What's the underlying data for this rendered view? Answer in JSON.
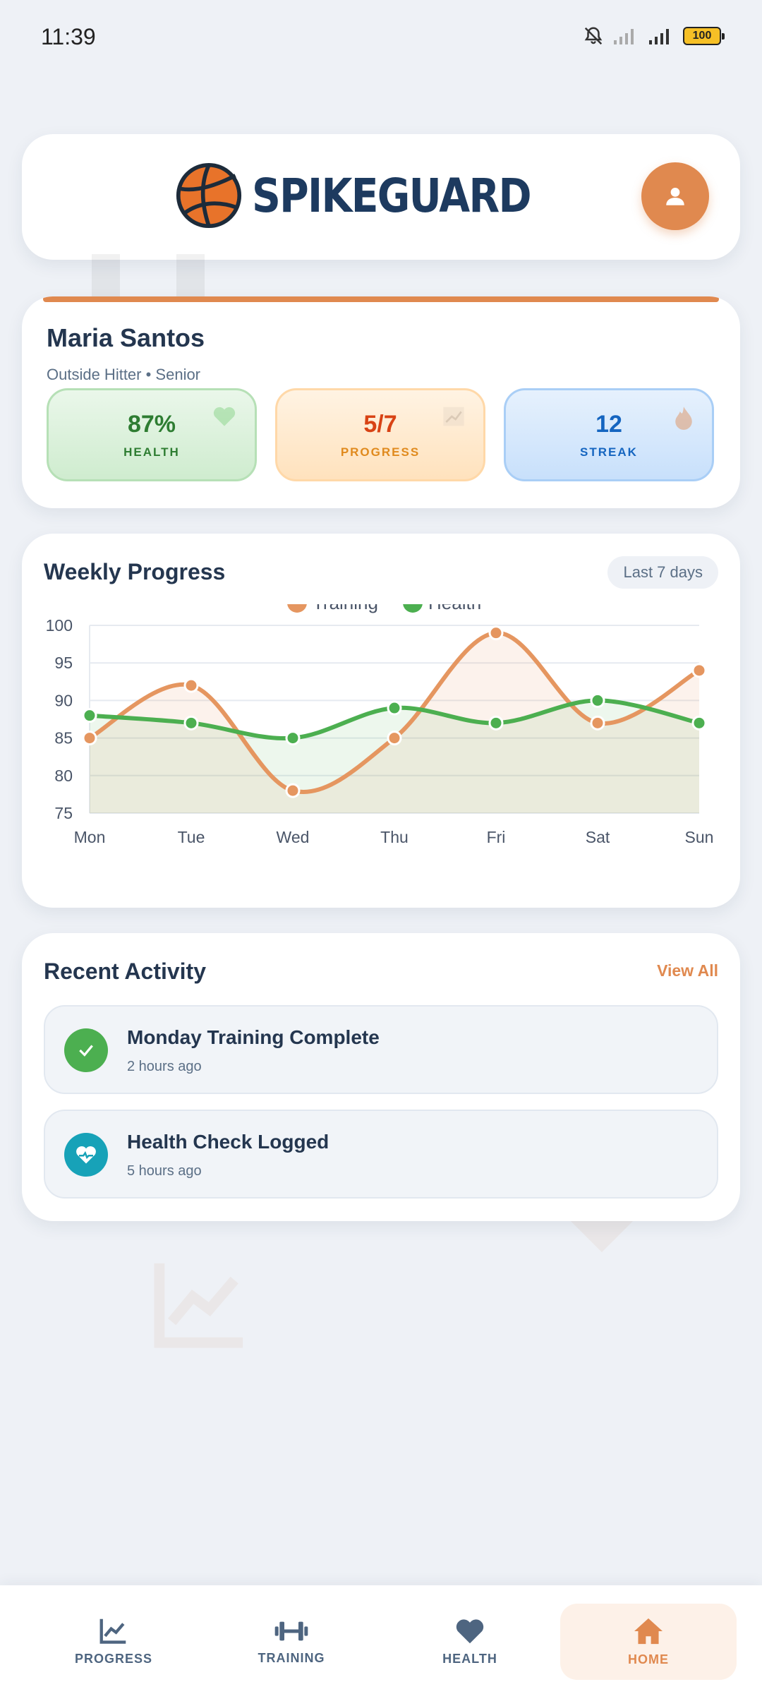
{
  "status_bar": {
    "time": "11:39",
    "battery": "100"
  },
  "header": {
    "brand": "SPIKEGUARD",
    "logo_icon": "volleyball-icon",
    "profile_icon": "user-icon"
  },
  "profile": {
    "name": "Maria Santos",
    "role": "Outside Hitter • Senior",
    "stats": [
      {
        "value": "87%",
        "label": "HEALTH",
        "icon": "heart-icon"
      },
      {
        "value": "5/7",
        "label": "PROGRESS",
        "icon": "chart-icon"
      },
      {
        "value": "12",
        "label": "STREAK",
        "icon": "flame-icon"
      }
    ]
  },
  "weekly_progress": {
    "title": "Weekly Progress",
    "range": "Last 7 days"
  },
  "chart_data": {
    "type": "line",
    "x": [
      "Mon",
      "Tue",
      "Wed",
      "Thu",
      "Fri",
      "Sat",
      "Sun"
    ],
    "ylim": [
      75,
      100
    ],
    "yticks": [
      100,
      95,
      90,
      85,
      80,
      75
    ],
    "series": [
      {
        "name": "Training",
        "color": "#e59660",
        "values": [
          85,
          92,
          78,
          85,
          99,
          87,
          94
        ]
      },
      {
        "name": "Health",
        "color": "#4caf50",
        "values": [
          88,
          87,
          85,
          89,
          87,
          90,
          87
        ]
      }
    ],
    "legend": "top-center",
    "grid": true
  },
  "recent_activity": {
    "title": "Recent Activity",
    "view_all": "View All",
    "items": [
      {
        "title": "Monday Training Complete",
        "time": "2 hours ago",
        "icon": "check-icon",
        "color": "#4caf50"
      },
      {
        "title": "Health Check Logged",
        "time": "5 hours ago",
        "icon": "heartbeat-icon",
        "color": "#17a2b8"
      }
    ]
  },
  "nav": [
    {
      "label": "PROGRESS",
      "icon": "chart-line-icon",
      "active": false
    },
    {
      "label": "TRAINING",
      "icon": "dumbbell-icon",
      "active": false
    },
    {
      "label": "HEALTH",
      "icon": "heart-icon",
      "active": false
    },
    {
      "label": "HOME",
      "icon": "home-icon",
      "active": true
    }
  ]
}
